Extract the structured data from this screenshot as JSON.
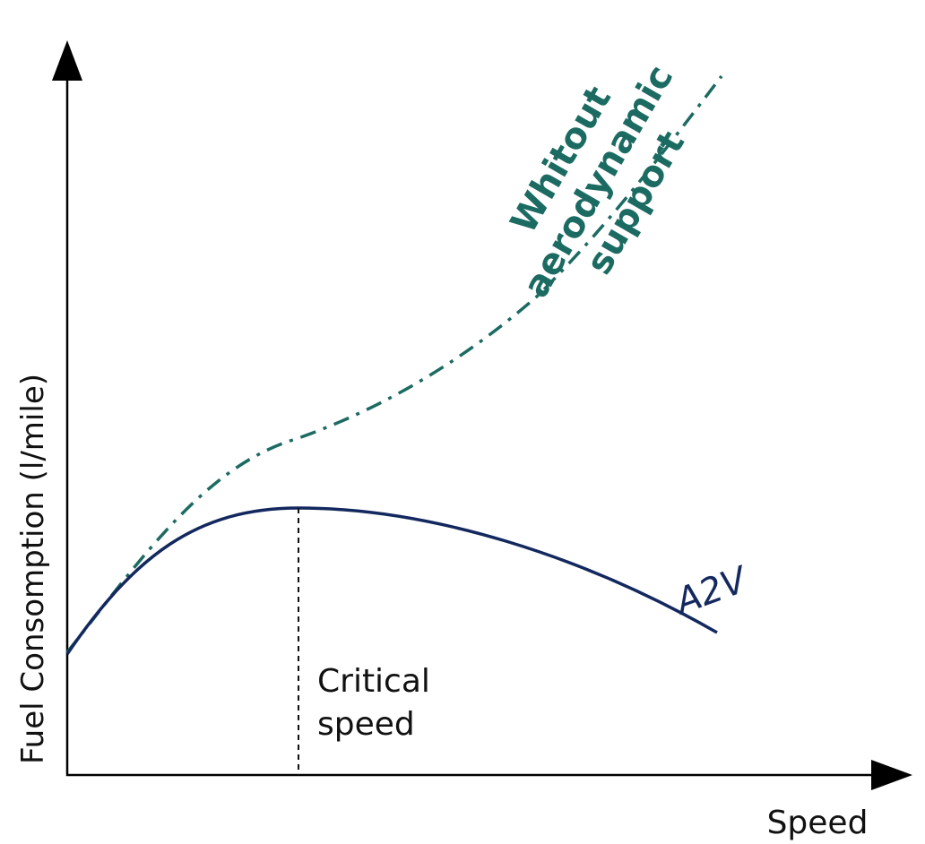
{
  "axes": {
    "y_label": "Fuel Consomption (l/mile)",
    "x_label": "Speed"
  },
  "curves": [
    {
      "label": "A2V"
    },
    {
      "label_lines": [
        "Whitout",
        "aerodynamic",
        "support"
      ]
    }
  ],
  "marker": {
    "label_lines": [
      "Critical",
      "speed"
    ]
  }
}
